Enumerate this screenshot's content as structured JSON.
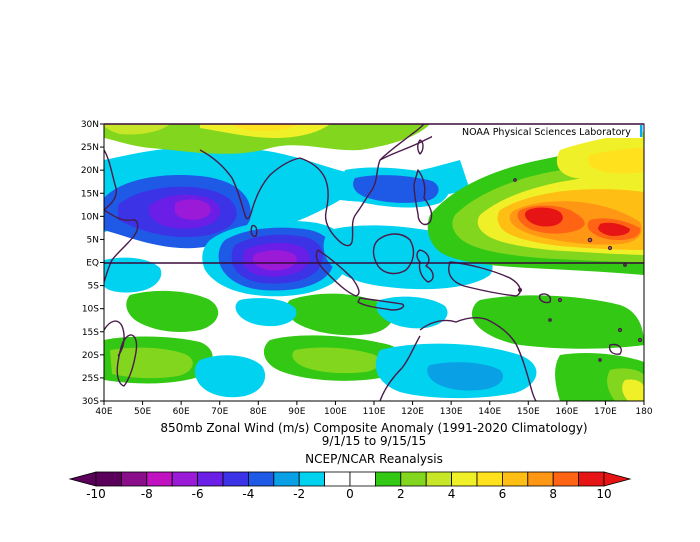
{
  "lab_label": "NOAA Physical Sciences Laboratory",
  "caption": {
    "line1": "850mb Zonal Wind (m/s) Composite Anomaly (1991-2020 Climatology)",
    "line2": "9/1/15  to 9/15/15",
    "line3": "NCEP/NCAR Reanalysis"
  },
  "map": {
    "lon_ticks": [
      "40E",
      "50E",
      "60E",
      "70E",
      "80E",
      "90E",
      "100E",
      "110E",
      "120E",
      "130E",
      "140E",
      "150E",
      "160E",
      "170E",
      "180"
    ],
    "lat_ticks": [
      "30N",
      "25N",
      "20N",
      "15N",
      "10N",
      "5N",
      "EQ",
      "5S",
      "10S",
      "15S",
      "20S",
      "25S",
      "30S"
    ],
    "lon_range": [
      40,
      180
    ],
    "lat_range": [
      -30,
      30
    ]
  },
  "colorbar": {
    "labels": [
      "-10",
      "-8",
      "-6",
      "-4",
      "-2",
      "0",
      "2",
      "4",
      "6",
      "8",
      "10"
    ],
    "colors": [
      "#5a005a",
      "#8a0e8a",
      "#c012c0",
      "#9a1ad8",
      "#6a1ee6",
      "#3c32e6",
      "#1e5ae6",
      "#0aa0e6",
      "#00d2f0",
      "#ffffff",
      "#ffffff",
      "#32c814",
      "#82d71e",
      "#c8e628",
      "#f0f028",
      "#ffe11e",
      "#ffbe14",
      "#ff9614",
      "#ff6414",
      "#e61414"
    ]
  },
  "colors": {
    "land": "#4a1a4a",
    "equator": "#3a0a3a",
    "frame": "#000000"
  }
}
